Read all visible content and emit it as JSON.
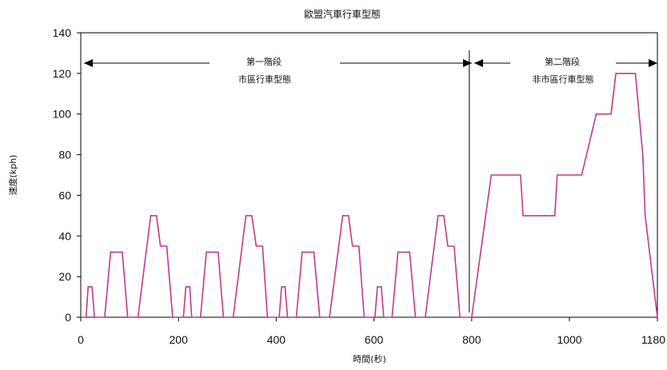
{
  "chart_data": {
    "type": "line",
    "title": "歐盟汽車行車型態",
    "xlabel": "時間(秒)",
    "ylabel": "速度(kph)",
    "xlim": [
      0,
      1180
    ],
    "ylim": [
      0,
      140
    ],
    "x_ticks": [
      0,
      200,
      400,
      600,
      800,
      1000,
      1180
    ],
    "y_ticks": [
      0,
      20,
      40,
      60,
      80,
      100,
      120,
      140
    ],
    "grid": false,
    "line_color": "#c0398f",
    "divider_x": 795,
    "annotations": [
      {
        "line1": "第一階段",
        "line2": "市區行車型態"
      },
      {
        "line1": "第二階段",
        "line2": "非市區行車型態"
      }
    ],
    "series": [
      {
        "x": [
          0,
          11,
          15,
          23,
          28,
          49,
          61,
          85,
          96,
          117,
          143,
          155,
          163,
          176,
          188,
          195,
          206,
          210,
          215,
          223,
          227,
          245,
          257,
          281,
          292,
          312,
          338,
          350,
          359,
          372,
          382,
          390,
          401,
          406,
          411,
          418,
          423,
          441,
          453,
          477,
          489,
          509,
          536,
          548,
          556,
          569,
          580,
          586,
          597,
          602,
          607,
          615,
          620,
          637,
          649,
          673,
          685,
          705,
          731,
          743,
          751,
          764,
          776,
          780,
          800,
          840,
          850,
          900,
          905,
          970,
          975,
          1000,
          1025,
          1055,
          1085,
          1095,
          1135,
          1150,
          1155,
          1180
        ],
        "values": [
          0,
          0,
          15,
          15,
          0,
          0,
          32,
          32,
          0,
          0,
          50,
          50,
          35,
          35,
          0,
          0,
          0,
          0,
          15,
          15,
          0,
          0,
          32,
          32,
          0,
          0,
          50,
          50,
          35,
          35,
          0,
          0,
          0,
          0,
          15,
          15,
          0,
          0,
          32,
          32,
          0,
          0,
          50,
          50,
          35,
          35,
          0,
          0,
          0,
          0,
          15,
          15,
          0,
          0,
          32,
          32,
          0,
          0,
          50,
          50,
          35,
          35,
          0,
          0,
          0,
          70,
          70,
          70,
          50,
          50,
          70,
          70,
          70,
          100,
          100,
          120,
          120,
          80,
          50,
          0
        ]
      }
    ]
  }
}
